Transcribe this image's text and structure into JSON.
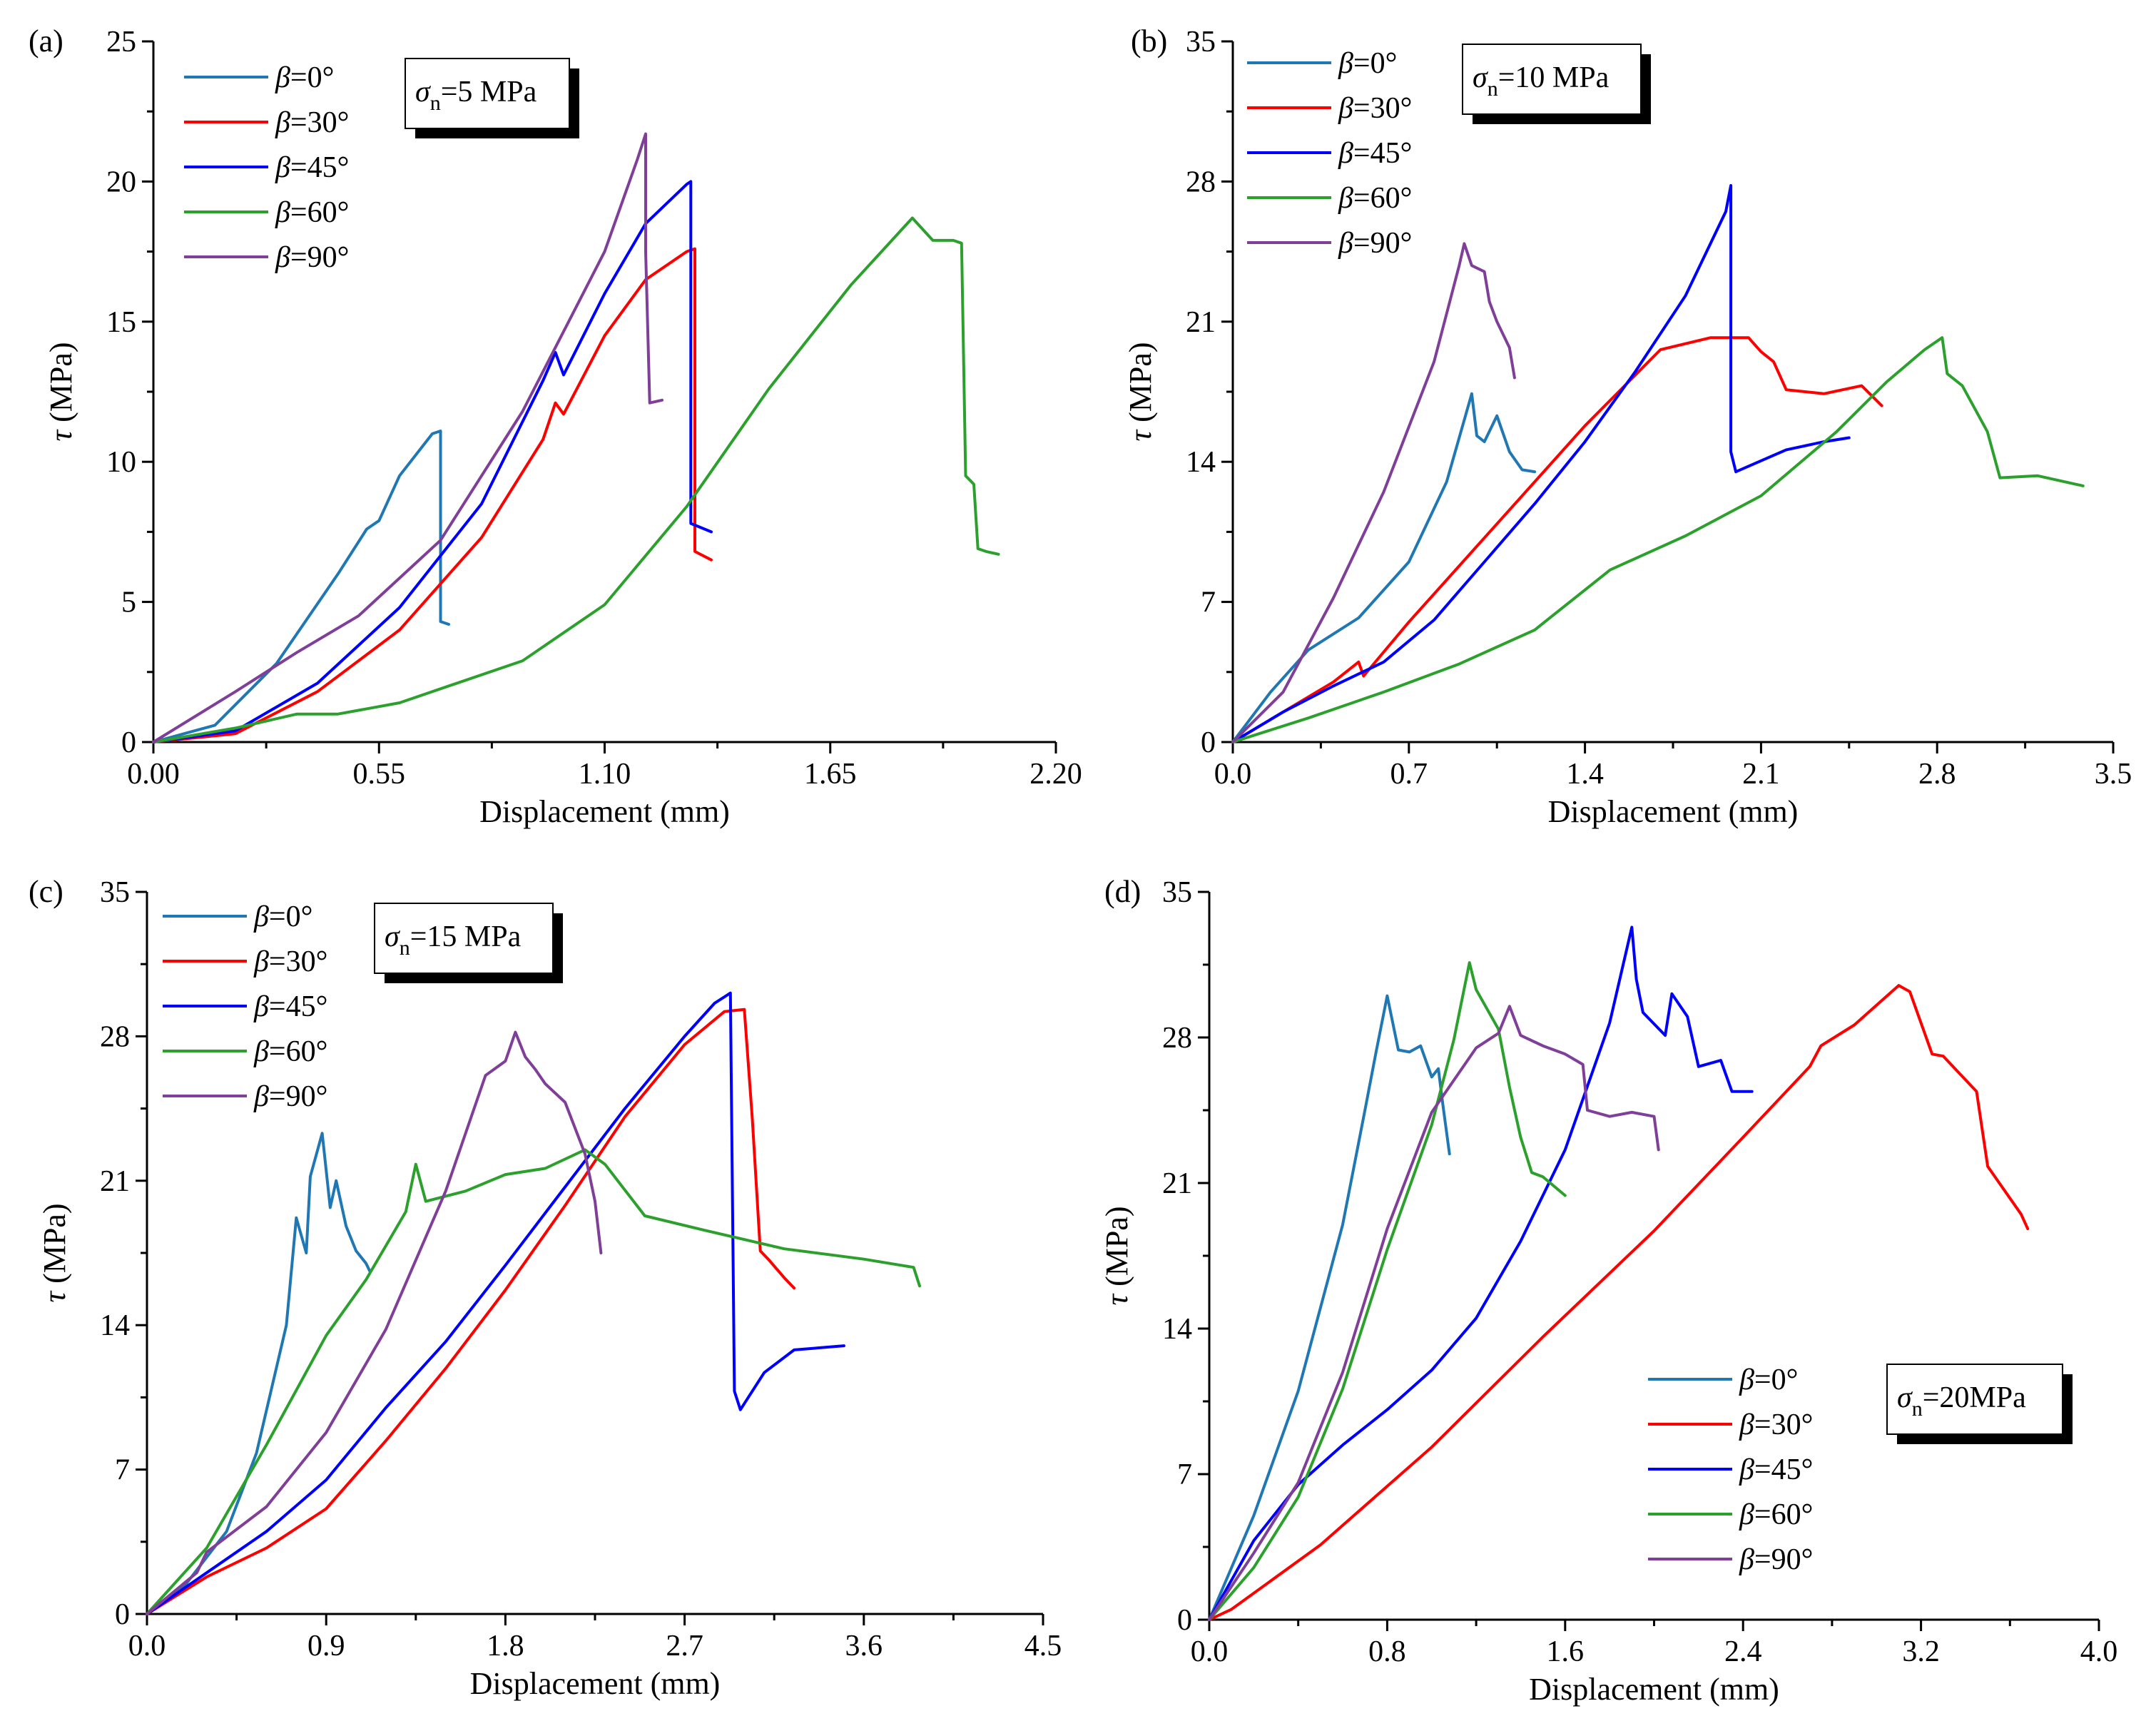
{
  "figure_title": "",
  "colors": {
    "beta0": "#1f77b4",
    "beta30": "#ff0000",
    "beta45": "#0000ff",
    "beta60": "#2ca02c",
    "beta90": "#7f3f98"
  },
  "chart_data": [
    {
      "type": "line",
      "panel_label": "(a)",
      "annotation": {
        "symbol": "σ",
        "sub": "n",
        "rest": "=5 MPa"
      },
      "xlabel": "Displacement (mm)",
      "ylabel": {
        "symbol": "τ",
        "rest": " (MPa)"
      },
      "xlim": [
        0,
        2.2
      ],
      "ylim": [
        0,
        25
      ],
      "xticks": [
        0,
        0.55,
        1.1,
        1.65,
        2.2
      ],
      "xtick_labels": [
        "0.00",
        "0.55",
        "1.10",
        "1.65",
        "2.20"
      ],
      "yticks": [
        0,
        5,
        10,
        15,
        20,
        25
      ],
      "ytick_labels": [
        "0",
        "5",
        "10",
        "15",
        "20",
        "25"
      ],
      "legend_position": "top-left",
      "series": [
        {
          "name": "β=0°",
          "label_pre": "β",
          "label_post": "=0°",
          "color_key": "beta0",
          "x": [
            0,
            0.15,
            0.3,
            0.45,
            0.52,
            0.55,
            0.6,
            0.68,
            0.7,
            0.7,
            0.72
          ],
          "y": [
            0,
            0.6,
            2.8,
            6,
            7.6,
            7.9,
            9.5,
            11,
            11.1,
            4.3,
            4.2
          ]
        },
        {
          "name": "β=30°",
          "label_pre": "β",
          "label_post": "=30°",
          "color_key": "beta30",
          "x": [
            0,
            0.2,
            0.4,
            0.6,
            0.8,
            0.95,
            0.98,
            1.0,
            1.1,
            1.2,
            1.3,
            1.32,
            1.32,
            1.36
          ],
          "y": [
            0,
            0.3,
            1.8,
            4,
            7.3,
            10.8,
            12.1,
            11.7,
            14.5,
            16.5,
            17.5,
            17.6,
            6.8,
            6.5
          ]
        },
        {
          "name": "β=45°",
          "label_pre": "β",
          "label_post": "=45°",
          "color_key": "beta45",
          "x": [
            0,
            0.2,
            0.4,
            0.6,
            0.8,
            0.95,
            0.98,
            1.0,
            1.1,
            1.2,
            1.3,
            1.31,
            1.31,
            1.36
          ],
          "y": [
            0,
            0.4,
            2.1,
            4.8,
            8.5,
            12.9,
            13.9,
            13.1,
            16,
            18.5,
            19.9,
            20,
            7.8,
            7.5
          ]
        },
        {
          "name": "β=60°",
          "label_pre": "β",
          "label_post": "=60°",
          "color_key": "beta60",
          "x": [
            0,
            0.2,
            0.35,
            0.45,
            0.6,
            0.9,
            1.1,
            1.3,
            1.5,
            1.7,
            1.85,
            1.9,
            1.95,
            1.97,
            1.98,
            2.0,
            2.01,
            2.03,
            2.06
          ],
          "y": [
            0,
            0.5,
            1,
            1,
            1.4,
            2.9,
            4.9,
            8.4,
            12.6,
            16.3,
            18.7,
            17.9,
            17.9,
            17.8,
            9.5,
            9.2,
            6.9,
            6.8,
            6.7
          ]
        },
        {
          "name": "β=90°",
          "label_pre": "β",
          "label_post": "=90°",
          "color_key": "beta90",
          "x": [
            0,
            0.2,
            0.35,
            0.5,
            0.7,
            0.9,
            1.1,
            1.18,
            1.2,
            1.2,
            1.21,
            1.24
          ],
          "y": [
            0,
            1.8,
            3.2,
            4.5,
            7.2,
            11.8,
            17.5,
            20.8,
            21.7,
            17.5,
            12.1,
            12.2
          ]
        }
      ]
    },
    {
      "type": "line",
      "panel_label": "(b)",
      "annotation": {
        "symbol": "σ",
        "sub": "n",
        "rest": "=10 MPa"
      },
      "xlabel": "Displacement (mm)",
      "ylabel": {
        "symbol": "τ",
        "rest": " (MPa)"
      },
      "xlim": [
        0,
        3.5
      ],
      "ylim": [
        0,
        35
      ],
      "xticks": [
        0,
        0.7,
        1.4,
        2.1,
        2.8,
        3.5
      ],
      "xtick_labels": [
        "0.0",
        "0.7",
        "1.4",
        "2.1",
        "2.8",
        "3.5"
      ],
      "yticks": [
        0,
        7,
        14,
        21,
        28,
        35
      ],
      "ytick_labels": [
        "0",
        "7",
        "14",
        "21",
        "28",
        "35"
      ],
      "legend_position": "top-left",
      "series": [
        {
          "name": "β=0°",
          "label_pre": "β",
          "label_post": "=0°",
          "color_key": "beta0",
          "x": [
            0,
            0.15,
            0.3,
            0.5,
            0.7,
            0.85,
            0.95,
            0.97,
            1.0,
            1.05,
            1.1,
            1.15,
            1.2
          ],
          "y": [
            0,
            2.5,
            4.6,
            6.2,
            9,
            13,
            17.4,
            15.3,
            15,
            16.3,
            14.5,
            13.6,
            13.5
          ]
        },
        {
          "name": "β=30°",
          "label_pre": "β",
          "label_post": "=30°",
          "color_key": "beta30",
          "x": [
            0,
            0.2,
            0.4,
            0.5,
            0.52,
            0.7,
            1.0,
            1.4,
            1.7,
            1.9,
            2.05,
            2.1,
            2.15,
            2.2,
            2.35,
            2.5,
            2.58
          ],
          "y": [
            0,
            1.5,
            3,
            4,
            3.3,
            6,
            10.2,
            15.8,
            19.6,
            20.2,
            20.2,
            19.5,
            19,
            17.6,
            17.4,
            17.8,
            16.8
          ]
        },
        {
          "name": "β=45°",
          "label_pre": "β",
          "label_post": "=45°",
          "color_key": "beta45",
          "x": [
            0,
            0.2,
            0.4,
            0.5,
            0.6,
            0.8,
            1.0,
            1.2,
            1.4,
            1.6,
            1.8,
            1.96,
            1.98,
            1.98,
            2.0,
            2.2,
            2.35,
            2.45
          ],
          "y": [
            0,
            1.5,
            2.8,
            3.4,
            4,
            6.1,
            9,
            11.9,
            15,
            18.5,
            22.3,
            26.5,
            27.8,
            14.5,
            13.5,
            14.6,
            15,
            15.2
          ]
        },
        {
          "name": "β=60°",
          "label_pre": "β",
          "label_post": "=60°",
          "color_key": "beta60",
          "x": [
            0,
            0.3,
            0.6,
            0.9,
            1.2,
            1.5,
            1.8,
            2.1,
            2.4,
            2.6,
            2.75,
            2.82,
            2.84,
            2.9,
            3.0,
            3.05,
            3.2,
            3.38
          ],
          "y": [
            0,
            1.2,
            2.5,
            3.9,
            5.6,
            8.6,
            10.3,
            12.3,
            15.5,
            18,
            19.6,
            20.2,
            18.4,
            17.8,
            15.5,
            13.2,
            13.3,
            12.8
          ]
        },
        {
          "name": "β=90°",
          "label_pre": "β",
          "label_post": "=90°",
          "color_key": "beta90",
          "x": [
            0,
            0.2,
            0.4,
            0.6,
            0.8,
            0.9,
            0.92,
            0.95,
            1.0,
            1.02,
            1.05,
            1.1,
            1.12
          ],
          "y": [
            0,
            2.5,
            7.2,
            12.5,
            19,
            23.8,
            24.9,
            23.8,
            23.5,
            22,
            21,
            19.7,
            18.2
          ]
        }
      ]
    },
    {
      "type": "line",
      "panel_label": "(c)",
      "annotation": {
        "symbol": "σ",
        "sub": "n",
        "rest": "=15 MPa"
      },
      "xlabel": "Displacement (mm)",
      "ylabel": {
        "symbol": "τ",
        "rest": " (MPa)"
      },
      "xlim": [
        0,
        4.5
      ],
      "ylim": [
        0,
        35
      ],
      "xticks": [
        0,
        0.9,
        1.8,
        2.7,
        3.6,
        4.5
      ],
      "xtick_labels": [
        "0.0",
        "0.9",
        "1.8",
        "2.7",
        "3.6",
        "4.5"
      ],
      "yticks": [
        0,
        7,
        14,
        21,
        28,
        35
      ],
      "ytick_labels": [
        "0",
        "7",
        "14",
        "21",
        "28",
        "35"
      ],
      "legend_position": "top-left",
      "series": [
        {
          "name": "β=0°",
          "label_pre": "β",
          "label_post": "=0°",
          "color_key": "beta0",
          "x": [
            0,
            0.2,
            0.4,
            0.55,
            0.7,
            0.75,
            0.8,
            0.82,
            0.88,
            0.92,
            0.95,
            1.0,
            1.05,
            1.1,
            1.12
          ],
          "y": [
            0,
            1.5,
            4,
            7.8,
            14,
            19.2,
            17.5,
            21.2,
            23.3,
            19.7,
            21,
            18.8,
            17.6,
            17,
            16.6
          ]
        },
        {
          "name": "β=30°",
          "label_pre": "β",
          "label_post": "=30°",
          "color_key": "beta30",
          "x": [
            0,
            0.3,
            0.6,
            0.9,
            1.2,
            1.5,
            1.8,
            2.1,
            2.4,
            2.7,
            2.9,
            3.0,
            3.04,
            3.08,
            3.12,
            3.2,
            3.25
          ],
          "y": [
            0,
            1.8,
            3.2,
            5.1,
            8.4,
            11.9,
            15.7,
            19.8,
            24.1,
            27.6,
            29.2,
            29.3,
            24,
            17.6,
            17.2,
            16.3,
            15.8
          ]
        },
        {
          "name": "β=45°",
          "label_pre": "β",
          "label_post": "=45°",
          "color_key": "beta45",
          "x": [
            0,
            0.3,
            0.6,
            0.9,
            1.2,
            1.5,
            1.8,
            2.1,
            2.4,
            2.7,
            2.85,
            2.93,
            2.95,
            2.98,
            3.1,
            3.25,
            3.5
          ],
          "y": [
            0,
            2,
            4,
            6.5,
            10,
            13.2,
            16.9,
            20.7,
            24.5,
            28,
            29.6,
            30.1,
            10.8,
            9.9,
            11.7,
            12.8,
            13
          ]
        },
        {
          "name": "β=60°",
          "label_pre": "β",
          "label_post": "=60°",
          "color_key": "beta60",
          "x": [
            0,
            0.3,
            0.6,
            0.9,
            1.1,
            1.3,
            1.35,
            1.4,
            1.6,
            1.8,
            2.0,
            2.2,
            2.3,
            2.5,
            2.8,
            3.2,
            3.6,
            3.85,
            3.88
          ],
          "y": [
            0,
            3.2,
            8.2,
            13.5,
            16.2,
            19.5,
            21.8,
            20,
            20.5,
            21.3,
            21.6,
            22.5,
            21.8,
            19.3,
            18.6,
            17.7,
            17.2,
            16.8,
            15.9
          ]
        },
        {
          "name": "β=90°",
          "label_pre": "β",
          "label_post": "=90°",
          "color_key": "beta90",
          "x": [
            0,
            0.25,
            0.3,
            0.6,
            0.9,
            1.2,
            1.5,
            1.7,
            1.8,
            1.85,
            1.9,
            1.95,
            2.0,
            2.1,
            2.2,
            2.25,
            2.28
          ],
          "y": [
            0,
            2,
            3,
            5.2,
            8.8,
            13.8,
            20.5,
            26.1,
            26.8,
            28.2,
            27,
            26.4,
            25.7,
            24.8,
            22.3,
            20,
            17.5
          ]
        }
      ]
    },
    {
      "type": "line",
      "panel_label": "(d)",
      "annotation": {
        "symbol": "σ",
        "sub": "n",
        "rest": "=20MPa"
      },
      "xlabel": "Displacement (mm)",
      "ylabel": {
        "symbol": "τ",
        "rest": " (MPa)"
      },
      "xlim": [
        0,
        4.0
      ],
      "ylim": [
        0,
        35
      ],
      "xticks": [
        0,
        0.8,
        1.6,
        2.4,
        3.2,
        4.0
      ],
      "xtick_labels": [
        "0.0",
        "0.8",
        "1.6",
        "2.4",
        "3.2",
        "4.0"
      ],
      "yticks": [
        0,
        7,
        14,
        21,
        28,
        35
      ],
      "ytick_labels": [
        "0",
        "7",
        "14",
        "21",
        "28",
        "35"
      ],
      "legend_position": "bottom-right",
      "series": [
        {
          "name": "β=0°",
          "label_pre": "β",
          "label_post": "=0°",
          "color_key": "beta0",
          "x": [
            0,
            0.2,
            0.4,
            0.6,
            0.7,
            0.75,
            0.8,
            0.85,
            0.9,
            0.95,
            1.0,
            1.03,
            1.05,
            1.08
          ],
          "y": [
            0,
            5,
            11,
            19,
            24.5,
            27.3,
            30,
            27.4,
            27.3,
            27.6,
            26.1,
            26.5,
            24.8,
            22.4
          ]
        },
        {
          "name": "β=30°",
          "label_pre": "β",
          "label_post": "=30°",
          "color_key": "beta30",
          "x": [
            0,
            0.1,
            0.5,
            1.0,
            1.5,
            2.0,
            2.4,
            2.7,
            2.75,
            2.9,
            3.1,
            3.15,
            3.25,
            3.3,
            3.45,
            3.5,
            3.65,
            3.68
          ],
          "y": [
            0,
            0.5,
            3.6,
            8.3,
            13.6,
            18.7,
            23.2,
            26.6,
            27.6,
            28.6,
            30.5,
            30.2,
            27.2,
            27.1,
            25.4,
            21.8,
            19.5,
            18.8
          ]
        },
        {
          "name": "β=45°",
          "label_pre": "β",
          "label_post": "=45°",
          "color_key": "beta45",
          "x": [
            0,
            0.2,
            0.4,
            0.6,
            0.8,
            1.0,
            1.2,
            1.4,
            1.6,
            1.8,
            1.9,
            1.92,
            1.95,
            2.05,
            2.08,
            2.15,
            2.2,
            2.3,
            2.35,
            2.44
          ],
          "y": [
            0,
            3.8,
            6.5,
            8.4,
            10.1,
            12,
            14.5,
            18.2,
            22.6,
            28.7,
            33.3,
            30.8,
            29.2,
            28.1,
            30.1,
            29,
            26.6,
            26.9,
            25.4,
            25.4
          ]
        },
        {
          "name": "β=60°",
          "label_pre": "β",
          "label_post": "=60°",
          "color_key": "beta60",
          "x": [
            0,
            0.2,
            0.4,
            0.6,
            0.8,
            1.0,
            1.1,
            1.17,
            1.2,
            1.3,
            1.35,
            1.4,
            1.45,
            1.5,
            1.6
          ],
          "y": [
            0,
            2.5,
            5.9,
            11.1,
            17.8,
            23.8,
            27.9,
            31.6,
            30.3,
            28.4,
            25.6,
            23.2,
            21.5,
            21.3,
            20.4
          ]
        },
        {
          "name": "β=90°",
          "label_pre": "β",
          "label_post": "=90°",
          "color_key": "beta90",
          "x": [
            0,
            0.2,
            0.4,
            0.6,
            0.8,
            1.0,
            1.2,
            1.3,
            1.35,
            1.4,
            1.5,
            1.6,
            1.68,
            1.7,
            1.8,
            1.9,
            2.0,
            2.02
          ],
          "y": [
            0,
            3.2,
            6.6,
            11.9,
            18.8,
            24.4,
            27.5,
            28.2,
            29.5,
            28.1,
            27.6,
            27.2,
            26.7,
            24.5,
            24.2,
            24.4,
            24.2,
            22.6
          ]
        }
      ]
    }
  ]
}
